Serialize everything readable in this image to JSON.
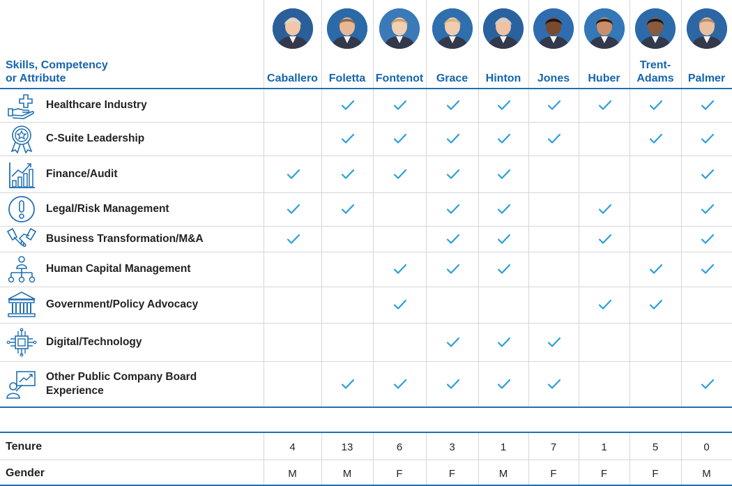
{
  "header": {
    "title_line1": "Skills, Competency",
    "title_line2": "or Attribute"
  },
  "members": [
    {
      "name": "Caballero",
      "name_line2": ""
    },
    {
      "name": "Foletta",
      "name_line2": ""
    },
    {
      "name": "Fontenot",
      "name_line2": ""
    },
    {
      "name": "Grace",
      "name_line2": ""
    },
    {
      "name": "Hinton",
      "name_line2": ""
    },
    {
      "name": "Jones",
      "name_line2": ""
    },
    {
      "name": "Huber",
      "name_line2": ""
    },
    {
      "name": "Trent-",
      "name_line2": "Adams"
    },
    {
      "name": "Palmer",
      "name_line2": ""
    }
  ],
  "skills": [
    {
      "label": "Healthcare Industry",
      "label_line2": "",
      "icon": "hand-plus-icon",
      "checks": [
        0,
        1,
        1,
        1,
        1,
        1,
        1,
        1,
        1
      ]
    },
    {
      "label": "C-Suite Leadership",
      "label_line2": "",
      "icon": "award-ribbon-icon",
      "checks": [
        0,
        1,
        1,
        1,
        1,
        1,
        0,
        1,
        1
      ]
    },
    {
      "label": "Finance/Audit",
      "label_line2": "",
      "icon": "bar-chart-icon",
      "checks": [
        1,
        1,
        1,
        1,
        1,
        0,
        0,
        0,
        1
      ]
    },
    {
      "label": "Legal/Risk Management",
      "label_line2": "",
      "icon": "exclamation-circle-icon",
      "checks": [
        1,
        1,
        0,
        1,
        1,
        0,
        1,
        0,
        1
      ]
    },
    {
      "label": "Business Transformation/M&A",
      "label_line2": "",
      "icon": "handshake-icon",
      "checks": [
        1,
        0,
        0,
        1,
        1,
        0,
        1,
        0,
        1
      ]
    },
    {
      "label": "Human Capital Management",
      "label_line2": "",
      "icon": "org-chart-icon",
      "checks": [
        0,
        0,
        1,
        1,
        1,
        0,
        0,
        1,
        1
      ]
    },
    {
      "label": "Government/Policy Advocacy",
      "label_line2": "",
      "icon": "government-building-icon",
      "checks": [
        0,
        0,
        1,
        0,
        0,
        0,
        1,
        1,
        0
      ]
    },
    {
      "label": "Digital/Technology",
      "label_line2": "",
      "icon": "microchip-icon",
      "checks": [
        0,
        0,
        0,
        1,
        1,
        1,
        0,
        0,
        0
      ]
    },
    {
      "label": "Other Public Company Board",
      "label_line2": "Experience",
      "icon": "presenter-chart-icon",
      "checks": [
        0,
        1,
        1,
        1,
        1,
        1,
        0,
        0,
        1
      ]
    }
  ],
  "footer": {
    "tenure_label": "Tenure",
    "tenure": [
      "4",
      "13",
      "6",
      "3",
      "1",
      "7",
      "1",
      "5",
      "0"
    ],
    "gender_label": "Gender",
    "gender": [
      "M",
      "M",
      "F",
      "F",
      "M",
      "F",
      "F",
      "F",
      "M"
    ]
  },
  "colors": {
    "accent": "#1565b0",
    "check": "#2a9fd8",
    "rule": "#1f6fb2",
    "grid": "#d6d6d6"
  }
}
